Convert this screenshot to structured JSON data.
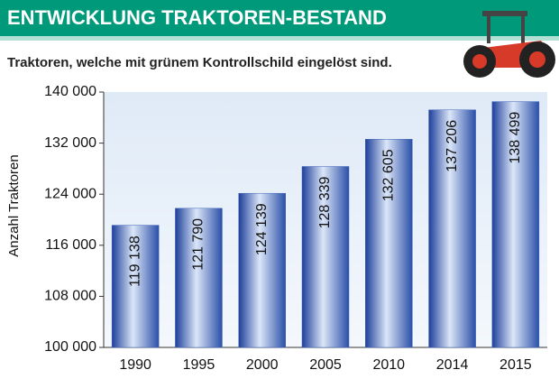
{
  "chart_data": {
    "type": "bar",
    "title": "ENTWICKLUNG TRAKTOREN-BESTAND",
    "subtitle": "Traktoren, welche mit grünem Kontrollschild eingelöst sind.",
    "y_label": "Anzahl Traktoren",
    "categories": [
      "1990",
      "1995",
      "2000",
      "2005",
      "2010",
      "2014",
      "2015"
    ],
    "values": [
      119138,
      121790,
      124139,
      128339,
      132605,
      137206,
      138499
    ],
    "value_labels": [
      "119 138",
      "121 790",
      "124 139",
      "128 339",
      "132 605",
      "137 206",
      "138 499"
    ],
    "color": "#3f63b8",
    "ylim": [
      100000,
      140000
    ],
    "yticks": [
      {
        "value": 100000,
        "label": "100 000"
      },
      {
        "value": 108000,
        "label": "108 000"
      },
      {
        "value": 116000,
        "label": "116 000"
      },
      {
        "value": 124000,
        "label": "124 000"
      },
      {
        "value": 132000,
        "label": "132 000"
      },
      {
        "value": 140000,
        "label": "140 000"
      }
    ],
    "grid": false
  }
}
